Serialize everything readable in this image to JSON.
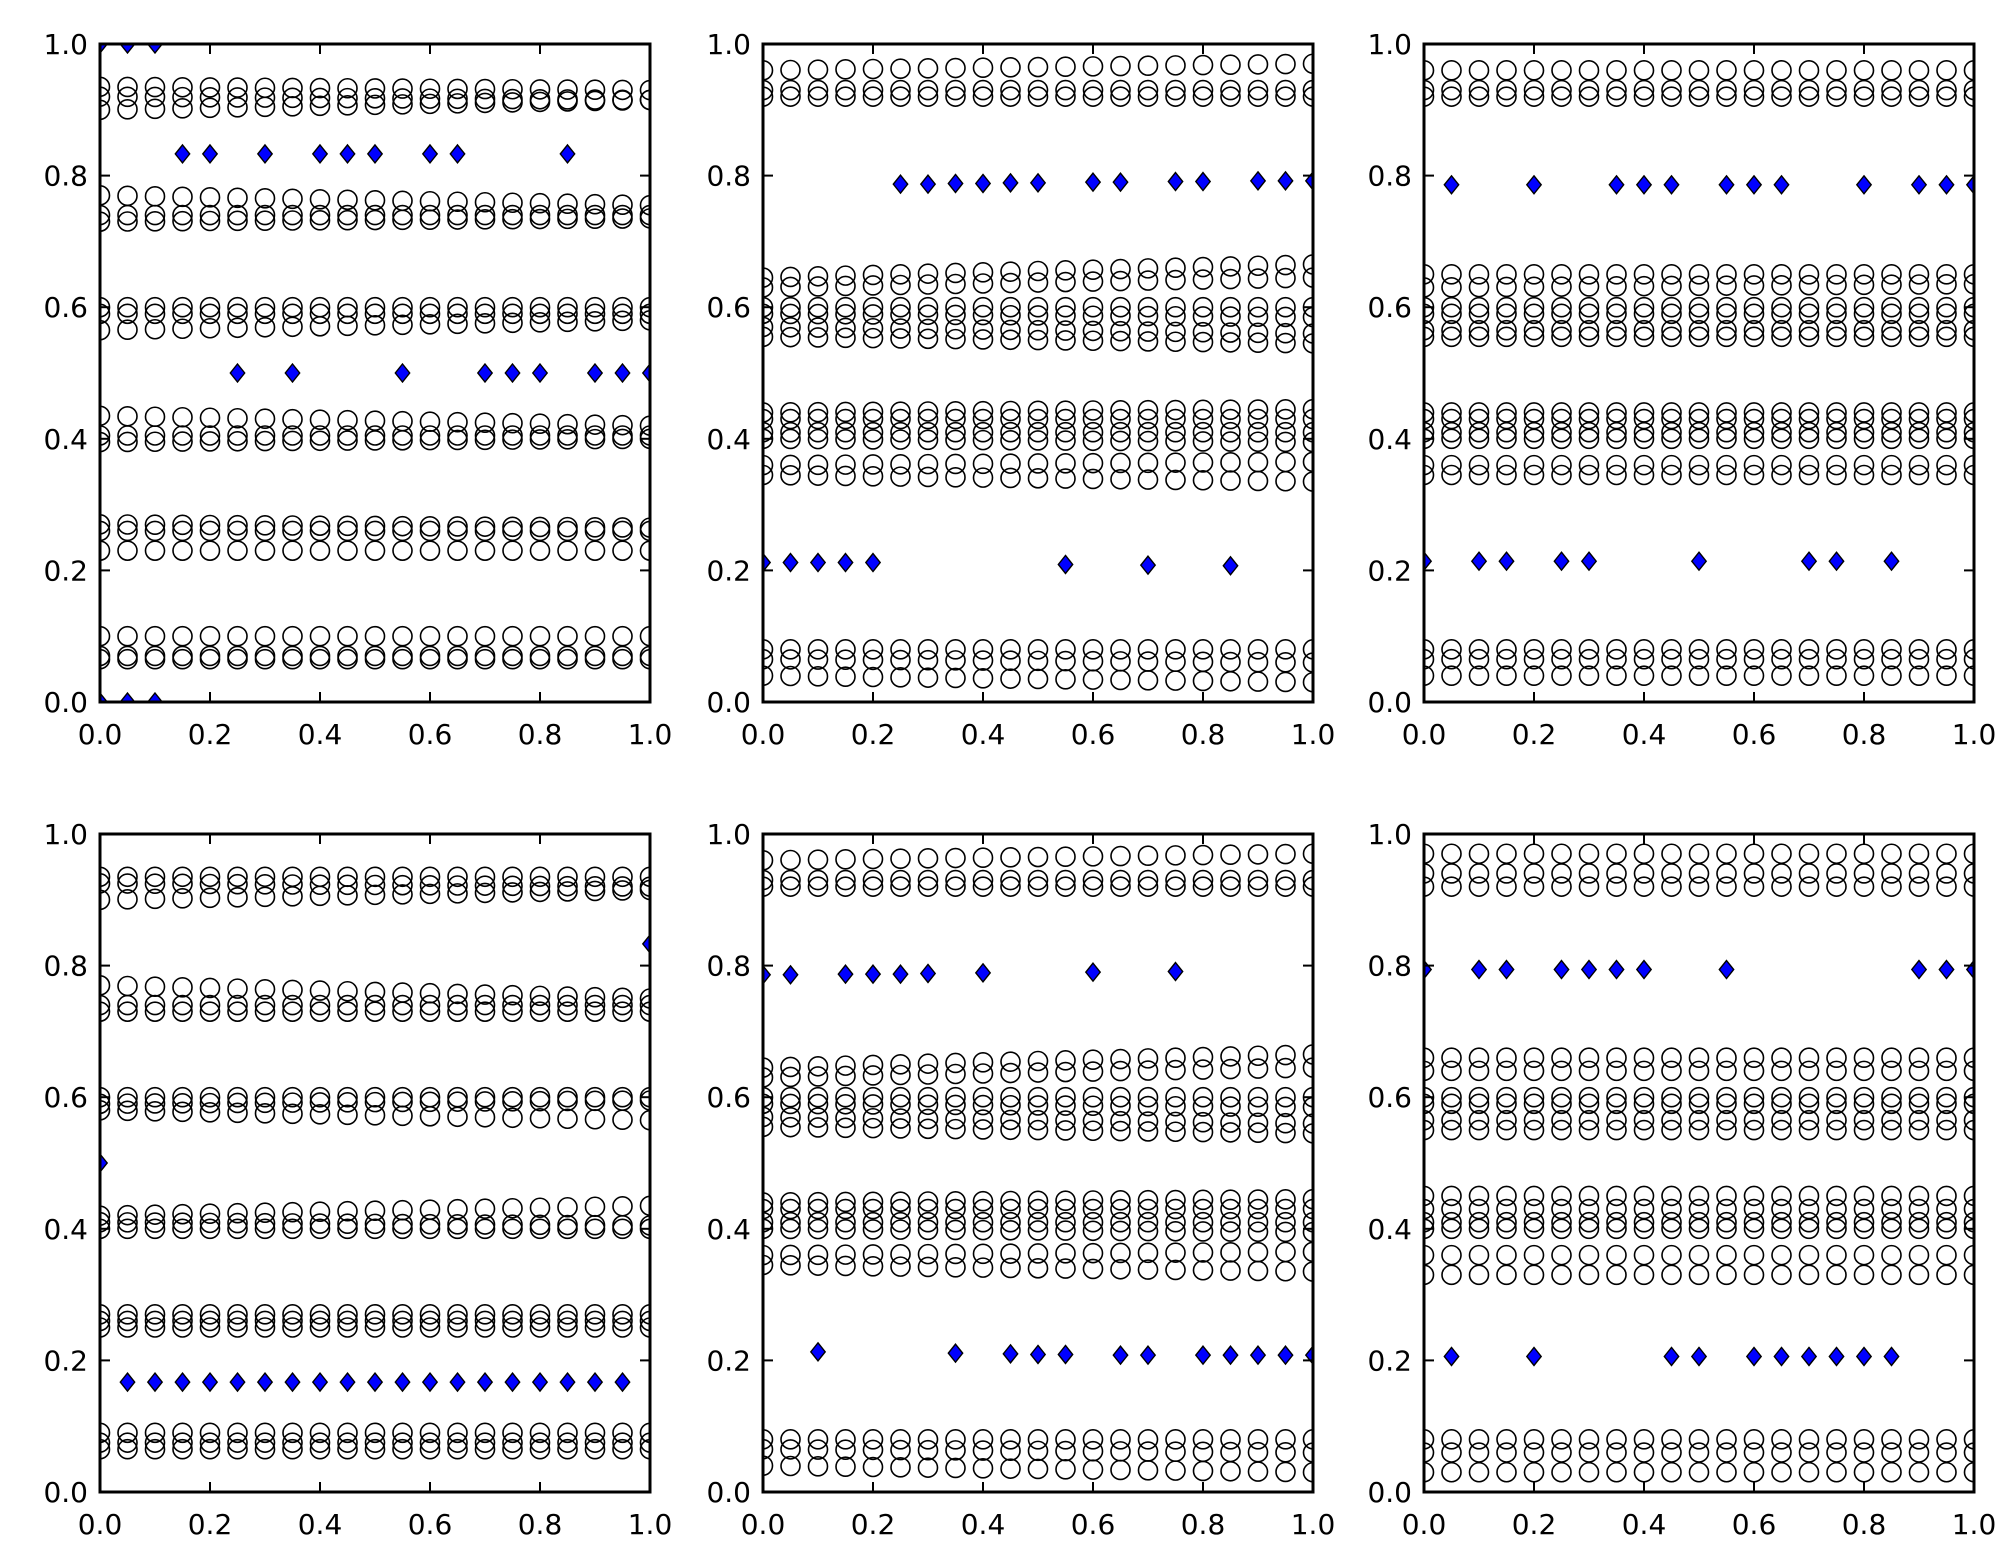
{
  "figure": {
    "layout": "2 rows x 3 columns of scatter plots",
    "colors": {
      "diamond_fill": "#0000ff",
      "marker_edge": "#000000",
      "background": "#ffffff"
    }
  },
  "chart_data": [
    {
      "type": "scatter",
      "panel": "row1-col1",
      "xlim": [
        0,
        1
      ],
      "ylim": [
        0,
        1
      ],
      "x_ticks": [
        "0.0",
        "0.2",
        "0.4",
        "0.6",
        "0.8",
        "1.0"
      ],
      "y_ticks": [
        "0.0",
        "0.2",
        "0.4",
        "0.6",
        "0.8",
        "1.0"
      ],
      "circle_x": [
        0,
        0.05,
        0.1,
        0.15,
        0.2,
        0.25,
        0.3,
        0.35,
        0.4,
        0.45,
        0.5,
        0.55,
        0.6,
        0.65,
        0.7,
        0.75,
        0.8,
        0.85,
        0.9,
        0.95,
        1.0
      ],
      "circle_rows": [
        {
          "y0": 0.935,
          "y1": 0.93
        },
        {
          "y0": 0.92,
          "y1": 0.915
        },
        {
          "y0": 0.9,
          "y1": 0.915
        },
        {
          "y0": 0.77,
          "y1": 0.755
        },
        {
          "y0": 0.74,
          "y1": 0.74
        },
        {
          "y0": 0.73,
          "y1": 0.735
        },
        {
          "y0": 0.6,
          "y1": 0.6
        },
        {
          "y0": 0.59,
          "y1": 0.59
        },
        {
          "y0": 0.565,
          "y1": 0.58
        },
        {
          "y0": 0.435,
          "y1": 0.42
        },
        {
          "y0": 0.405,
          "y1": 0.405
        },
        {
          "y0": 0.395,
          "y1": 0.4
        },
        {
          "y0": 0.27,
          "y1": 0.265
        },
        {
          "y0": 0.26,
          "y1": 0.26
        },
        {
          "y0": 0.23,
          "y1": 0.23
        },
        {
          "y0": 0.1,
          "y1": 0.1
        },
        {
          "y0": 0.07,
          "y1": 0.07
        },
        {
          "y0": 0.065,
          "y1": 0.065
        }
      ],
      "diamonds": [
        [
          0.0,
          1.0
        ],
        [
          0.05,
          1.0
        ],
        [
          0.1,
          1.0
        ],
        [
          0.0,
          0.0
        ],
        [
          0.05,
          0.0
        ],
        [
          0.1,
          0.0
        ],
        [
          0.15,
          0.833
        ],
        [
          0.2,
          0.833
        ],
        [
          0.3,
          0.833
        ],
        [
          0.4,
          0.833
        ],
        [
          0.45,
          0.833
        ],
        [
          0.5,
          0.833
        ],
        [
          0.6,
          0.833
        ],
        [
          0.65,
          0.833
        ],
        [
          0.85,
          0.833
        ],
        [
          0.25,
          0.5
        ],
        [
          0.35,
          0.5
        ],
        [
          0.55,
          0.5
        ],
        [
          0.7,
          0.5
        ],
        [
          0.75,
          0.5
        ],
        [
          0.8,
          0.5
        ],
        [
          0.9,
          0.5
        ],
        [
          0.95,
          0.5
        ],
        [
          1.0,
          0.5
        ]
      ]
    },
    {
      "type": "scatter",
      "panel": "row1-col2",
      "xlim": [
        0,
        1
      ],
      "ylim": [
        0,
        1
      ],
      "x_ticks": [
        "0.0",
        "0.2",
        "0.4",
        "0.6",
        "0.8",
        "1.0"
      ],
      "y_ticks": [
        "0.0",
        "0.2",
        "0.4",
        "0.6",
        "0.8",
        "1.0"
      ],
      "circle_x": [
        0,
        0.05,
        0.1,
        0.15,
        0.2,
        0.25,
        0.3,
        0.35,
        0.4,
        0.45,
        0.5,
        0.55,
        0.6,
        0.65,
        0.7,
        0.75,
        0.8,
        0.85,
        0.9,
        0.95,
        1.0
      ],
      "circle_rows": [
        {
          "y0": 0.96,
          "y1": 0.97
        },
        {
          "y0": 0.93,
          "y1": 0.93
        },
        {
          "y0": 0.92,
          "y1": 0.92
        },
        {
          "y0": 0.645,
          "y1": 0.665
        },
        {
          "y0": 0.63,
          "y1": 0.645
        },
        {
          "y0": 0.6,
          "y1": 0.6
        },
        {
          "y0": 0.59,
          "y1": 0.585
        },
        {
          "y0": 0.57,
          "y1": 0.56
        },
        {
          "y0": 0.555,
          "y1": 0.545
        },
        {
          "y0": 0.44,
          "y1": 0.445
        },
        {
          "y0": 0.43,
          "y1": 0.43
        },
        {
          "y0": 0.41,
          "y1": 0.41
        },
        {
          "y0": 0.4,
          "y1": 0.395
        },
        {
          "y0": 0.36,
          "y1": 0.365
        },
        {
          "y0": 0.345,
          "y1": 0.335
        },
        {
          "y0": 0.08,
          "y1": 0.08
        },
        {
          "y0": 0.065,
          "y1": 0.06
        },
        {
          "y0": 0.04,
          "y1": 0.03
        }
      ],
      "diamonds": [
        [
          0.25,
          0.787
        ],
        [
          0.3,
          0.787
        ],
        [
          0.35,
          0.788
        ],
        [
          0.4,
          0.788
        ],
        [
          0.45,
          0.789
        ],
        [
          0.5,
          0.789
        ],
        [
          0.6,
          0.79
        ],
        [
          0.65,
          0.79
        ],
        [
          0.75,
          0.791
        ],
        [
          0.8,
          0.791
        ],
        [
          0.9,
          0.792
        ],
        [
          0.95,
          0.792
        ],
        [
          1.0,
          0.792
        ],
        [
          0.0,
          0.212
        ],
        [
          0.05,
          0.212
        ],
        [
          0.1,
          0.212
        ],
        [
          0.15,
          0.212
        ],
        [
          0.2,
          0.212
        ],
        [
          0.55,
          0.209
        ],
        [
          0.7,
          0.208
        ],
        [
          0.85,
          0.207
        ]
      ]
    },
    {
      "type": "scatter",
      "panel": "row1-col3",
      "xlim": [
        0,
        1
      ],
      "ylim": [
        0,
        1
      ],
      "x_ticks": [
        "0.0",
        "0.2",
        "0.4",
        "0.6",
        "0.8",
        "1.0"
      ],
      "y_ticks": [
        "0.0",
        "0.2",
        "0.4",
        "0.6",
        "0.8",
        "1.0"
      ],
      "circle_x": [
        0,
        0.05,
        0.1,
        0.15,
        0.2,
        0.25,
        0.3,
        0.35,
        0.4,
        0.45,
        0.5,
        0.55,
        0.6,
        0.65,
        0.7,
        0.75,
        0.8,
        0.85,
        0.9,
        0.95,
        1.0
      ],
      "circle_rows": [
        {
          "y0": 0.96,
          "y1": 0.96
        },
        {
          "y0": 0.93,
          "y1": 0.93
        },
        {
          "y0": 0.92,
          "y1": 0.92
        },
        {
          "y0": 0.65,
          "y1": 0.65
        },
        {
          "y0": 0.63,
          "y1": 0.635
        },
        {
          "y0": 0.6,
          "y1": 0.6
        },
        {
          "y0": 0.59,
          "y1": 0.59
        },
        {
          "y0": 0.565,
          "y1": 0.565
        },
        {
          "y0": 0.555,
          "y1": 0.555
        },
        {
          "y0": 0.44,
          "y1": 0.44
        },
        {
          "y0": 0.43,
          "y1": 0.43
        },
        {
          "y0": 0.41,
          "y1": 0.41
        },
        {
          "y0": 0.4,
          "y1": 0.4
        },
        {
          "y0": 0.36,
          "y1": 0.36
        },
        {
          "y0": 0.345,
          "y1": 0.345
        },
        {
          "y0": 0.08,
          "y1": 0.08
        },
        {
          "y0": 0.065,
          "y1": 0.065
        },
        {
          "y0": 0.04,
          "y1": 0.04
        }
      ],
      "diamonds": [
        [
          0.05,
          0.786
        ],
        [
          0.2,
          0.786
        ],
        [
          0.35,
          0.786
        ],
        [
          0.4,
          0.786
        ],
        [
          0.45,
          0.786
        ],
        [
          0.55,
          0.786
        ],
        [
          0.6,
          0.786
        ],
        [
          0.65,
          0.786
        ],
        [
          0.8,
          0.786
        ],
        [
          0.9,
          0.786
        ],
        [
          0.95,
          0.786
        ],
        [
          1.0,
          0.786
        ],
        [
          0.0,
          0.214
        ],
        [
          0.1,
          0.214
        ],
        [
          0.15,
          0.214
        ],
        [
          0.25,
          0.214
        ],
        [
          0.3,
          0.214
        ],
        [
          0.5,
          0.214
        ],
        [
          0.7,
          0.214
        ],
        [
          0.75,
          0.214
        ],
        [
          0.85,
          0.214
        ]
      ]
    },
    {
      "type": "scatter",
      "panel": "row2-col1",
      "xlim": [
        0,
        1
      ],
      "ylim": [
        0,
        1
      ],
      "x_ticks": [
        "0.0",
        "0.2",
        "0.4",
        "0.6",
        "0.8",
        "1.0"
      ],
      "y_ticks": [
        "0.0",
        "0.2",
        "0.4",
        "0.6",
        "0.8",
        "1.0"
      ],
      "circle_x": [
        0,
        0.05,
        0.1,
        0.15,
        0.2,
        0.25,
        0.3,
        0.35,
        0.4,
        0.45,
        0.5,
        0.55,
        0.6,
        0.65,
        0.7,
        0.75,
        0.8,
        0.85,
        0.9,
        0.95,
        1.0
      ],
      "circle_rows": [
        {
          "y0": 0.935,
          "y1": 0.935
        },
        {
          "y0": 0.925,
          "y1": 0.92
        },
        {
          "y0": 0.9,
          "y1": 0.915
        },
        {
          "y0": 0.77,
          "y1": 0.75
        },
        {
          "y0": 0.74,
          "y1": 0.74
        },
        {
          "y0": 0.73,
          "y1": 0.73
        },
        {
          "y0": 0.6,
          "y1": 0.6
        },
        {
          "y0": 0.59,
          "y1": 0.595
        },
        {
          "y0": 0.58,
          "y1": 0.565
        },
        {
          "y0": 0.42,
          "y1": 0.435
        },
        {
          "y0": 0.41,
          "y1": 0.405
        },
        {
          "y0": 0.4,
          "y1": 0.4
        },
        {
          "y0": 0.27,
          "y1": 0.27
        },
        {
          "y0": 0.26,
          "y1": 0.26
        },
        {
          "y0": 0.25,
          "y1": 0.25
        },
        {
          "y0": 0.09,
          "y1": 0.09
        },
        {
          "y0": 0.075,
          "y1": 0.075
        },
        {
          "y0": 0.065,
          "y1": 0.065
        }
      ],
      "diamonds": [
        [
          1.0,
          0.833
        ],
        [
          0.0,
          0.5
        ],
        [
          0.05,
          0.167
        ],
        [
          0.1,
          0.167
        ],
        [
          0.15,
          0.167
        ],
        [
          0.2,
          0.167
        ],
        [
          0.25,
          0.167
        ],
        [
          0.3,
          0.167
        ],
        [
          0.35,
          0.167
        ],
        [
          0.4,
          0.167
        ],
        [
          0.45,
          0.167
        ],
        [
          0.5,
          0.167
        ],
        [
          0.55,
          0.167
        ],
        [
          0.6,
          0.167
        ],
        [
          0.65,
          0.167
        ],
        [
          0.7,
          0.167
        ],
        [
          0.75,
          0.167
        ],
        [
          0.8,
          0.167
        ],
        [
          0.85,
          0.167
        ],
        [
          0.9,
          0.167
        ],
        [
          0.95,
          0.167
        ]
      ]
    },
    {
      "type": "scatter",
      "panel": "row2-col2",
      "xlim": [
        0,
        1
      ],
      "ylim": [
        0,
        1
      ],
      "x_ticks": [
        "0.0",
        "0.2",
        "0.4",
        "0.6",
        "0.8",
        "1.0"
      ],
      "y_ticks": [
        "0.0",
        "0.2",
        "0.4",
        "0.6",
        "0.8",
        "1.0"
      ],
      "circle_x": [
        0,
        0.05,
        0.1,
        0.15,
        0.2,
        0.25,
        0.3,
        0.35,
        0.4,
        0.45,
        0.5,
        0.55,
        0.6,
        0.65,
        0.7,
        0.75,
        0.8,
        0.85,
        0.9,
        0.95,
        1.0
      ],
      "circle_rows": [
        {
          "y0": 0.96,
          "y1": 0.97
        },
        {
          "y0": 0.93,
          "y1": 0.93
        },
        {
          "y0": 0.92,
          "y1": 0.92
        },
        {
          "y0": 0.645,
          "y1": 0.665
        },
        {
          "y0": 0.63,
          "y1": 0.645
        },
        {
          "y0": 0.6,
          "y1": 0.6
        },
        {
          "y0": 0.59,
          "y1": 0.585
        },
        {
          "y0": 0.57,
          "y1": 0.56
        },
        {
          "y0": 0.555,
          "y1": 0.545
        },
        {
          "y0": 0.44,
          "y1": 0.445
        },
        {
          "y0": 0.43,
          "y1": 0.43
        },
        {
          "y0": 0.41,
          "y1": 0.41
        },
        {
          "y0": 0.4,
          "y1": 0.395
        },
        {
          "y0": 0.36,
          "y1": 0.365
        },
        {
          "y0": 0.345,
          "y1": 0.335
        },
        {
          "y0": 0.08,
          "y1": 0.08
        },
        {
          "y0": 0.065,
          "y1": 0.06
        },
        {
          "y0": 0.04,
          "y1": 0.03
        }
      ],
      "diamonds": [
        [
          0.0,
          0.786
        ],
        [
          0.05,
          0.786
        ],
        [
          0.15,
          0.787
        ],
        [
          0.2,
          0.787
        ],
        [
          0.25,
          0.787
        ],
        [
          0.3,
          0.788
        ],
        [
          0.4,
          0.789
        ],
        [
          0.6,
          0.79
        ],
        [
          0.75,
          0.791
        ],
        [
          0.1,
          0.213
        ],
        [
          0.35,
          0.211
        ],
        [
          0.45,
          0.21
        ],
        [
          0.5,
          0.209
        ],
        [
          0.55,
          0.209
        ],
        [
          0.65,
          0.208
        ],
        [
          0.7,
          0.208
        ],
        [
          0.8,
          0.208
        ],
        [
          0.85,
          0.208
        ],
        [
          0.9,
          0.208
        ],
        [
          0.95,
          0.208
        ],
        [
          1.0,
          0.208
        ]
      ]
    },
    {
      "type": "scatter",
      "panel": "row2-col3",
      "xlim": [
        0,
        1
      ],
      "ylim": [
        0,
        1
      ],
      "x_ticks": [
        "0.0",
        "0.2",
        "0.4",
        "0.6",
        "0.8",
        "1.0"
      ],
      "y_ticks": [
        "0.0",
        "0.2",
        "0.4",
        "0.6",
        "0.8",
        "1.0"
      ],
      "circle_x": [
        0,
        0.05,
        0.1,
        0.15,
        0.2,
        0.25,
        0.3,
        0.35,
        0.4,
        0.45,
        0.5,
        0.55,
        0.6,
        0.65,
        0.7,
        0.75,
        0.8,
        0.85,
        0.9,
        0.95,
        1.0
      ],
      "circle_rows": [
        {
          "y0": 0.97,
          "y1": 0.97
        },
        {
          "y0": 0.94,
          "y1": 0.94
        },
        {
          "y0": 0.92,
          "y1": 0.92
        },
        {
          "y0": 0.66,
          "y1": 0.66
        },
        {
          "y0": 0.64,
          "y1": 0.64
        },
        {
          "y0": 0.6,
          "y1": 0.6
        },
        {
          "y0": 0.59,
          "y1": 0.59
        },
        {
          "y0": 0.565,
          "y1": 0.565
        },
        {
          "y0": 0.55,
          "y1": 0.55
        },
        {
          "y0": 0.45,
          "y1": 0.45
        },
        {
          "y0": 0.43,
          "y1": 0.43
        },
        {
          "y0": 0.41,
          "y1": 0.41
        },
        {
          "y0": 0.4,
          "y1": 0.4
        },
        {
          "y0": 0.36,
          "y1": 0.36
        },
        {
          "y0": 0.33,
          "y1": 0.33
        },
        {
          "y0": 0.08,
          "y1": 0.08
        },
        {
          "y0": 0.06,
          "y1": 0.06
        },
        {
          "y0": 0.03,
          "y1": 0.03
        }
      ],
      "diamonds": [
        [
          0.0,
          0.794
        ],
        [
          0.1,
          0.794
        ],
        [
          0.15,
          0.794
        ],
        [
          0.25,
          0.794
        ],
        [
          0.3,
          0.794
        ],
        [
          0.35,
          0.794
        ],
        [
          0.4,
          0.794
        ],
        [
          0.55,
          0.794
        ],
        [
          0.9,
          0.794
        ],
        [
          0.95,
          0.794
        ],
        [
          1.0,
          0.794
        ],
        [
          0.05,
          0.206
        ],
        [
          0.2,
          0.206
        ],
        [
          0.45,
          0.206
        ],
        [
          0.5,
          0.206
        ],
        [
          0.6,
          0.206
        ],
        [
          0.65,
          0.206
        ],
        [
          0.7,
          0.206
        ],
        [
          0.75,
          0.206
        ],
        [
          0.8,
          0.206
        ],
        [
          0.85,
          0.206
        ]
      ]
    }
  ]
}
